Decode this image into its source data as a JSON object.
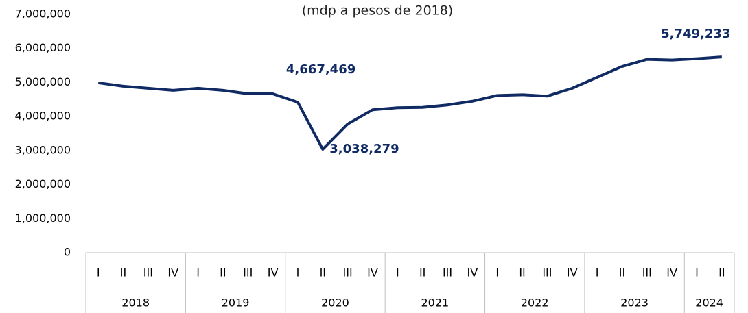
{
  "chart_data": {
    "type": "line",
    "subtitle": "(mdp a pesos de 2018)",
    "groups": [
      {
        "name": "2018",
        "categories": [
          "I",
          "II",
          "III",
          "IV"
        ]
      },
      {
        "name": "2019",
        "categories": [
          "I",
          "II",
          "III",
          "IV"
        ]
      },
      {
        "name": "2020",
        "categories": [
          "I",
          "II",
          "III",
          "IV"
        ]
      },
      {
        "name": "2021",
        "categories": [
          "I",
          "II",
          "III",
          "IV"
        ]
      },
      {
        "name": "2022",
        "categories": [
          "I",
          "II",
          "III",
          "IV"
        ]
      },
      {
        "name": "2023",
        "categories": [
          "I",
          "II",
          "III",
          "IV"
        ]
      },
      {
        "name": "2024",
        "categories": [
          "I",
          "II"
        ]
      }
    ],
    "series": [
      {
        "color": "#102a63",
        "values": [
          4990000,
          4890000,
          4830000,
          4770000,
          4830000,
          4770000,
          4670000,
          4667469,
          4420000,
          3038279,
          3780000,
          4200000,
          4260000,
          4270000,
          4340000,
          4450000,
          4620000,
          4640000,
          4600000,
          4830000,
          5150000,
          5470000,
          5680000,
          5660000,
          5700000,
          5749233
        ],
        "value_labels": [
          null,
          null,
          null,
          null,
          null,
          null,
          null,
          "4,667,469",
          null,
          "3,038,279",
          null,
          null,
          null,
          null,
          null,
          null,
          null,
          null,
          null,
          null,
          null,
          null,
          null,
          null,
          null,
          "5,749,233"
        ]
      }
    ],
    "ylim": [
      0,
      7000000
    ],
    "yticks": [
      0,
      {
        "value": 1000000,
        "label": "1,000,000"
      },
      {
        "value": 2000000,
        "label": "2,000,000"
      },
      {
        "value": 3000000,
        "label": "3,000,000"
      },
      {
        "value": 4000000,
        "label": "4,000,000"
      },
      {
        "value": 5000000,
        "label": "5,000,000"
      },
      {
        "value": 6000000,
        "label": "6,000,000"
      },
      {
        "value": 7000000,
        "label": "7,000,000"
      }
    ],
    "grid": false
  }
}
